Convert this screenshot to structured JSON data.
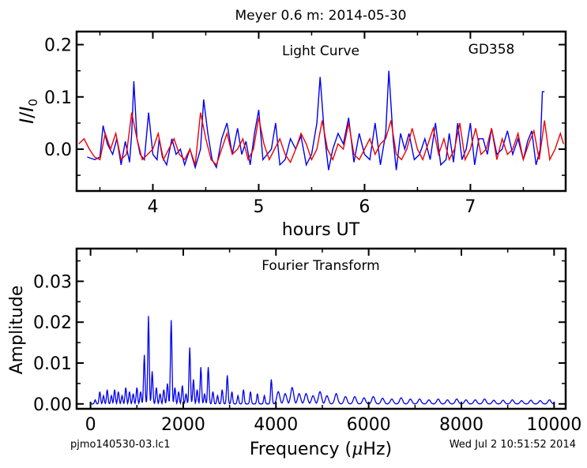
{
  "figure_title": "Meyer 0.6 m:  2014-05-30",
  "footer": {
    "filename": "pjmo140530-03.lc1",
    "timestamp": "Wed Jul  2 10:51:52 2014"
  },
  "colors": {
    "observed": "#0000ee",
    "model": "#ee0000",
    "ft": "#0000ee"
  },
  "chart_data": [
    {
      "type": "line",
      "title": "Light Curve",
      "annotation": "GD358",
      "xlabel": "hours UT",
      "ylabel": "I/I0",
      "xlim": [
        3.28,
        7.9
      ],
      "ylim": [
        -0.08,
        0.225
      ],
      "xticks": [
        4,
        5,
        6,
        7
      ],
      "xtick_labels": [
        "4",
        "5",
        "6",
        "7"
      ],
      "yticks": [
        0.0,
        0.1,
        0.2
      ],
      "ytick_labels": [
        "0.0",
        "0.1",
        "0.2"
      ],
      "grid": false,
      "series": [
        {
          "role": "observed",
          "x": [
            3.38,
            3.45,
            3.5,
            3.53,
            3.57,
            3.62,
            3.66,
            3.7,
            3.74,
            3.78,
            3.8,
            3.82,
            3.85,
            3.88,
            3.92,
            3.96,
            4.0,
            4.04,
            4.06,
            4.09,
            4.13,
            4.18,
            4.22,
            4.26,
            4.3,
            4.35,
            4.4,
            4.45,
            4.48,
            4.52,
            4.56,
            4.6,
            4.65,
            4.7,
            4.75,
            4.8,
            4.84,
            4.88,
            4.92,
            4.96,
            5.0,
            5.04,
            5.08,
            5.12,
            5.16,
            5.2,
            5.25,
            5.3,
            5.35,
            5.4,
            5.45,
            5.5,
            5.55,
            5.58,
            5.62,
            5.66,
            5.7,
            5.75,
            5.8,
            5.85,
            5.9,
            5.95,
            6.0,
            6.05,
            6.1,
            6.15,
            6.2,
            6.23,
            6.27,
            6.3,
            6.34,
            6.38,
            6.42,
            6.47,
            6.52,
            6.57,
            6.62,
            6.67,
            6.72,
            6.77,
            6.8,
            6.84,
            6.88,
            6.92,
            6.96,
            7.0,
            7.04,
            7.08,
            7.12,
            7.16,
            7.2,
            7.25,
            7.3,
            7.35,
            7.4,
            7.45,
            7.5,
            7.54,
            7.58,
            7.62,
            7.66,
            7.68,
            7.7
          ],
          "y": [
            -0.015,
            -0.02,
            -0.015,
            0.045,
            0.01,
            -0.01,
            0.02,
            -0.03,
            0.015,
            -0.025,
            0.03,
            0.13,
            0.02,
            -0.01,
            -0.02,
            0.07,
            -0.01,
            -0.02,
            0.02,
            -0.015,
            -0.03,
            0.02,
            -0.01,
            0.0,
            -0.03,
            0.0,
            -0.035,
            0.0,
            0.095,
            0.03,
            -0.02,
            -0.035,
            0.02,
            0.05,
            -0.01,
            0.04,
            -0.01,
            0.015,
            -0.03,
            0.03,
            0.075,
            -0.02,
            -0.01,
            0.0,
            0.05,
            -0.03,
            -0.02,
            0.02,
            0.0,
            0.025,
            -0.03,
            -0.01,
            0.05,
            0.138,
            0.03,
            -0.04,
            0.0,
            0.03,
            0.01,
            0.06,
            -0.025,
            0.03,
            -0.01,
            -0.02,
            0.05,
            -0.03,
            0.03,
            0.15,
            0.02,
            -0.04,
            0.03,
            0.0,
            0.03,
            -0.02,
            -0.01,
            0.02,
            -0.02,
            0.05,
            -0.03,
            -0.02,
            0.03,
            -0.025,
            0.05,
            -0.02,
            0.0,
            0.05,
            -0.03,
            0.02,
            0.02,
            -0.01,
            0.04,
            -0.01,
            0.0,
            0.035,
            -0.01,
            0.02,
            -0.02,
            0.015,
            0.035,
            -0.03,
            0.0,
            0.11,
            0.11
          ]
        },
        {
          "role": "model",
          "x": [
            3.3,
            3.35,
            3.4,
            3.45,
            3.5,
            3.55,
            3.6,
            3.65,
            3.7,
            3.75,
            3.8,
            3.85,
            3.9,
            3.95,
            4.0,
            4.05,
            4.1,
            4.15,
            4.2,
            4.25,
            4.3,
            4.35,
            4.4,
            4.45,
            4.5,
            4.55,
            4.6,
            4.65,
            4.7,
            4.75,
            4.8,
            4.85,
            4.9,
            4.95,
            5.0,
            5.05,
            5.1,
            5.15,
            5.2,
            5.25,
            5.3,
            5.35,
            5.4,
            5.45,
            5.5,
            5.55,
            5.6,
            5.65,
            5.7,
            5.75,
            5.8,
            5.85,
            5.9,
            5.95,
            6.0,
            6.05,
            6.1,
            6.15,
            6.2,
            6.25,
            6.3,
            6.35,
            6.4,
            6.45,
            6.5,
            6.55,
            6.6,
            6.65,
            6.7,
            6.75,
            6.8,
            6.85,
            6.9,
            6.95,
            7.0,
            7.05,
            7.1,
            7.15,
            7.2,
            7.25,
            7.3,
            7.35,
            7.4,
            7.45,
            7.5,
            7.55,
            7.6,
            7.65,
            7.7,
            7.75,
            7.8,
            7.85,
            7.88
          ],
          "y": [
            0.01,
            0.02,
            0.0,
            -0.015,
            -0.02,
            0.03,
            0.0,
            0.03,
            -0.02,
            -0.01,
            0.07,
            0.02,
            -0.02,
            -0.01,
            0.0,
            0.03,
            -0.02,
            0.0,
            0.02,
            -0.01,
            -0.02,
            0.0,
            -0.03,
            0.07,
            0.02,
            -0.02,
            -0.03,
            0.0,
            0.03,
            -0.01,
            0.0,
            0.02,
            -0.02,
            0.0,
            0.06,
            0.01,
            -0.02,
            0.0,
            0.02,
            -0.01,
            -0.025,
            0.0,
            0.03,
            0.01,
            -0.02,
            0.0,
            0.055,
            0.0,
            -0.02,
            0.01,
            0.0,
            0.05,
            -0.01,
            -0.02,
            0.0,
            0.02,
            -0.01,
            0.01,
            0.02,
            0.055,
            -0.01,
            -0.02,
            0.0,
            0.04,
            0.0,
            -0.02,
            0.01,
            0.04,
            -0.01,
            0.02,
            -0.02,
            0.0,
            0.05,
            -0.02,
            0.0,
            0.04,
            -0.01,
            0.0,
            0.04,
            -0.02,
            0.02,
            -0.01,
            0.0,
            0.03,
            -0.02,
            0.01,
            0.035,
            -0.02,
            0.055,
            -0.02,
            0.0,
            0.03,
            0.01
          ]
        }
      ]
    },
    {
      "type": "line",
      "title": "Fourier Transform",
      "xlabel_main": "Frequency (",
      "xlabel_unit": "Hz)",
      "ylabel": "Amplitude",
      "xlim": [
        -300,
        10250
      ],
      "ylim": [
        -0.0012,
        0.038
      ],
      "xticks": [
        0,
        2000,
        4000,
        6000,
        8000,
        10000
      ],
      "xtick_labels": [
        "0",
        "2000",
        "4000",
        "6000",
        "8000",
        "10000"
      ],
      "yticks": [
        0.0,
        0.01,
        0.02,
        0.03
      ],
      "ytick_labels": [
        "0.00",
        "0.01",
        "0.02",
        "0.03"
      ],
      "grid": false,
      "peaks": {
        "f": [
          100,
          200,
          280,
          360,
          450,
          520,
          600,
          680,
          760,
          840,
          920,
          1000,
          1080,
          1160,
          1250,
          1330,
          1420,
          1500,
          1580,
          1660,
          1740,
          1820,
          1900,
          1980,
          2060,
          2140,
          2220,
          2300,
          2380,
          2460,
          2540,
          2640,
          2740,
          2840,
          2950,
          3050,
          3180,
          3300,
          3450,
          3600,
          3750,
          3900,
          4050,
          4200,
          4350,
          4500,
          4650,
          4800,
          4950,
          5100,
          5300,
          5500,
          5700,
          5900,
          6100,
          6300,
          6500,
          6700,
          6900,
          7100,
          7300,
          7500,
          7700,
          7900,
          8100,
          8300,
          8500,
          8700,
          8900,
          9100,
          9300,
          9500,
          9700,
          9900
        ],
        "a": [
          0.001,
          0.003,
          0.002,
          0.0035,
          0.002,
          0.0035,
          0.003,
          0.002,
          0.004,
          0.003,
          0.0025,
          0.004,
          0.003,
          0.012,
          0.0215,
          0.008,
          0.004,
          0.0025,
          0.0035,
          0.005,
          0.0205,
          0.004,
          0.003,
          0.0045,
          0.0025,
          0.0138,
          0.006,
          0.0035,
          0.009,
          0.0025,
          0.009,
          0.003,
          0.002,
          0.0035,
          0.007,
          0.003,
          0.002,
          0.0035,
          0.003,
          0.0025,
          0.002,
          0.006,
          0.003,
          0.0025,
          0.004,
          0.0025,
          0.0025,
          0.002,
          0.003,
          0.002,
          0.0025,
          0.0018,
          0.0018,
          0.0015,
          0.0018,
          0.0014,
          0.0012,
          0.0015,
          0.0012,
          0.0012,
          0.001,
          0.0012,
          0.001,
          0.0012,
          0.001,
          0.001,
          0.0012,
          0.0009,
          0.0009,
          0.001,
          0.0008,
          0.0009,
          0.0008,
          0.001
        ]
      }
    }
  ]
}
